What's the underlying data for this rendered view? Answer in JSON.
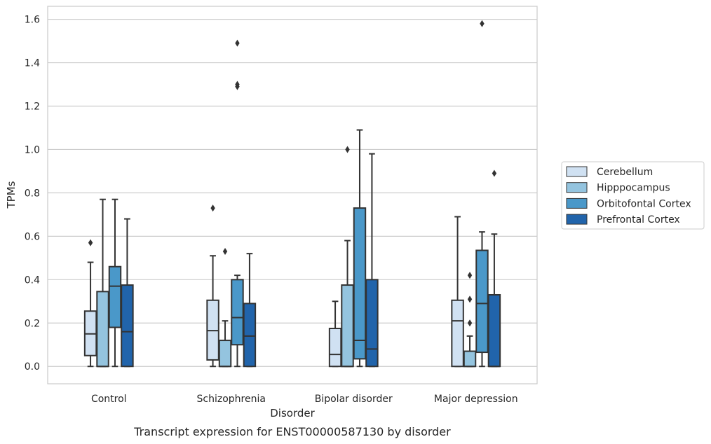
{
  "chart_data": {
    "type": "box",
    "caption": "Transcript expression for ENST00000587130 by disorder",
    "xlabel": "Disorder",
    "ylabel": "TPMs",
    "ylim": [
      -0.08,
      1.66
    ],
    "yticks": [
      "0.0",
      "0.2",
      "0.4",
      "0.6",
      "0.8",
      "1.0",
      "1.2",
      "1.4",
      "1.6"
    ],
    "grid": "horizontal",
    "legend_position": "right",
    "categories": [
      "Control",
      "Schizophrenia",
      "Bipolar disorder",
      "Major depression"
    ],
    "series": [
      {
        "name": "Cerebellum",
        "color": "#d0e1f2",
        "boxes": [
          {
            "whisker_low": 0.0,
            "q1": 0.05,
            "median": 0.15,
            "q3": 0.255,
            "whisker_high": 0.48,
            "outliers": [
              0.57
            ]
          },
          {
            "whisker_low": 0.0,
            "q1": 0.03,
            "median": 0.165,
            "q3": 0.305,
            "whisker_high": 0.51,
            "outliers": [
              0.73
            ]
          },
          {
            "whisker_low": 0.0,
            "q1": 0.0,
            "median": 0.055,
            "q3": 0.175,
            "whisker_high": 0.3,
            "outliers": []
          },
          {
            "whisker_low": 0.0,
            "q1": 0.0,
            "median": 0.21,
            "q3": 0.305,
            "whisker_high": 0.69,
            "outliers": []
          }
        ]
      },
      {
        "name": "Hipppocampus",
        "color": "#94c4df",
        "boxes": [
          {
            "whisker_low": 0.0,
            "q1": 0.0,
            "median": 0.0,
            "q3": 0.345,
            "whisker_high": 0.77,
            "outliers": []
          },
          {
            "whisker_low": 0.0,
            "q1": 0.0,
            "median": 0.0,
            "q3": 0.12,
            "whisker_high": 0.21,
            "outliers": [
              0.53
            ]
          },
          {
            "whisker_low": 0.0,
            "q1": 0.0,
            "median": 0.0,
            "q3": 0.375,
            "whisker_high": 0.58,
            "outliers": [
              1.0
            ]
          },
          {
            "whisker_low": 0.0,
            "q1": 0.0,
            "median": 0.0,
            "q3": 0.07,
            "whisker_high": 0.14,
            "outliers": [
              0.2,
              0.31,
              0.42
            ]
          }
        ]
      },
      {
        "name": "Orbitofontal Cortex",
        "color": "#4a98c9",
        "boxes": [
          {
            "whisker_low": 0.0,
            "q1": 0.18,
            "median": 0.37,
            "q3": 0.46,
            "whisker_high": 0.77,
            "outliers": []
          },
          {
            "whisker_low": 0.0,
            "q1": 0.1,
            "median": 0.225,
            "q3": 0.4,
            "whisker_high": 0.42,
            "outliers": [
              1.29,
              1.3,
              1.49
            ]
          },
          {
            "whisker_low": 0.0,
            "q1": 0.035,
            "median": 0.12,
            "q3": 0.73,
            "whisker_high": 1.09,
            "outliers": []
          },
          {
            "whisker_low": 0.0,
            "q1": 0.065,
            "median": 0.29,
            "q3": 0.535,
            "whisker_high": 0.62,
            "outliers": [
              1.58
            ]
          }
        ]
      },
      {
        "name": "Prefrontal Cortex",
        "color": "#2164ab",
        "boxes": [
          {
            "whisker_low": 0.0,
            "q1": 0.0,
            "median": 0.16,
            "q3": 0.375,
            "whisker_high": 0.68,
            "outliers": []
          },
          {
            "whisker_low": 0.0,
            "q1": 0.0,
            "median": 0.14,
            "q3": 0.29,
            "whisker_high": 0.52,
            "outliers": []
          },
          {
            "whisker_low": 0.0,
            "q1": 0.0,
            "median": 0.08,
            "q3": 0.4,
            "whisker_high": 0.98,
            "outliers": []
          },
          {
            "whisker_low": 0.0,
            "q1": 0.0,
            "median": 0.0,
            "q3": 0.33,
            "whisker_high": 0.61,
            "outliers": [
              0.89
            ]
          }
        ]
      }
    ]
  }
}
